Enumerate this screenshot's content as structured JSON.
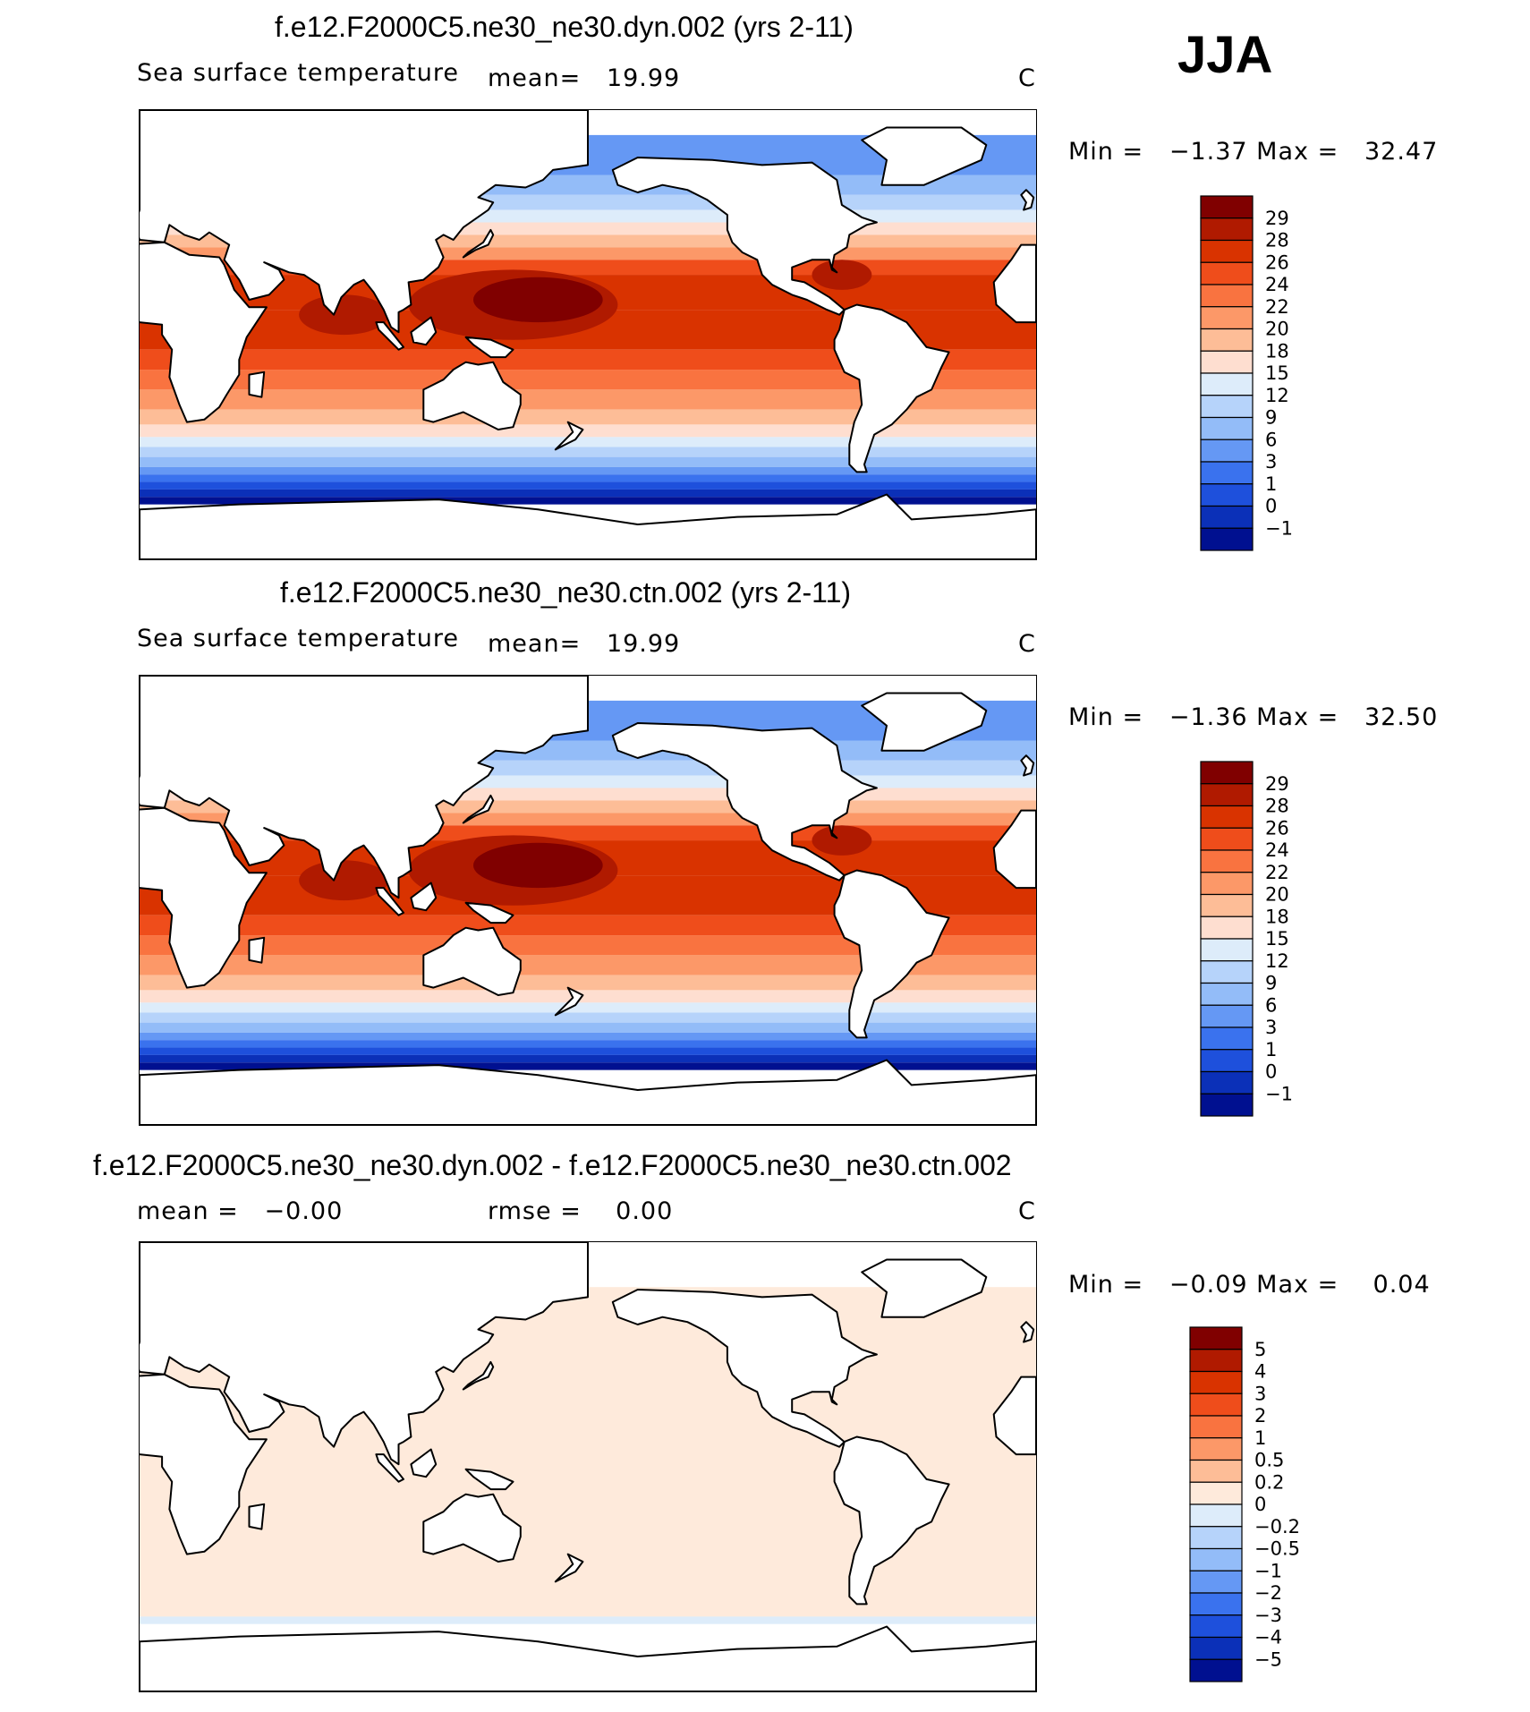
{
  "season": "JJA",
  "panels": [
    {
      "id": "dyn",
      "title": "f.e12.F2000C5.ne30_ne30.dyn.002 (yrs 2-11)",
      "variable": "Sea surface temperature",
      "stat1": "mean=   19.99",
      "units": "C",
      "minmax": "Min =   −1.37 Max =   32.47",
      "colorbar": {
        "labels": [
          "29",
          "28",
          "26",
          "24",
          "22",
          "20",
          "18",
          "15",
          "12",
          "9",
          "6",
          "3",
          "1",
          "0",
          "−1"
        ],
        "colors": [
          "#800000",
          "#b01a00",
          "#d93300",
          "#ef4d1b",
          "#f97340",
          "#fc9868",
          "#fdbd97",
          "#feded0",
          "#ddecfa",
          "#b6d3fa",
          "#93bcf8",
          "#6598f4",
          "#3a72ee",
          "#1e50dc",
          "#0b30b8",
          "#001090"
        ]
      }
    },
    {
      "id": "ctn",
      "title": "f.e12.F2000C5.ne30_ne30.ctn.002 (yrs 2-11)",
      "variable": "Sea surface temperature",
      "stat1": "mean=   19.99",
      "units": "C",
      "minmax": "Min =   −1.36 Max =   32.50",
      "colorbar": {
        "labels": [
          "29",
          "28",
          "26",
          "24",
          "22",
          "20",
          "18",
          "15",
          "12",
          "9",
          "6",
          "3",
          "1",
          "0",
          "−1"
        ],
        "colors": [
          "#800000",
          "#b01a00",
          "#d93300",
          "#ef4d1b",
          "#f97340",
          "#fc9868",
          "#fdbd97",
          "#feded0",
          "#ddecfa",
          "#b6d3fa",
          "#93bcf8",
          "#6598f4",
          "#3a72ee",
          "#1e50dc",
          "#0b30b8",
          "#001090"
        ]
      }
    },
    {
      "id": "diff",
      "title": "f.e12.F2000C5.ne30_ne30.dyn.002 - f.e12.F2000C5.ne30_ne30.ctn.002",
      "stat1": "mean =   −0.00",
      "stat2": "rmse =    0.00",
      "units": "C",
      "minmax": "Min =   −0.09 Max =    0.04",
      "colorbar": {
        "labels": [
          "5",
          "4",
          "3",
          "2",
          "1",
          "0.5",
          "0.2",
          "0",
          "−0.2",
          "−0.5",
          "−1",
          "−2",
          "−3",
          "−4",
          "−5"
        ],
        "colors": [
          "#800000",
          "#b01a00",
          "#d93300",
          "#ef4d1b",
          "#f97340",
          "#fc9868",
          "#fdbd97",
          "#feeadb",
          "#ddecfa",
          "#b6d3fa",
          "#93bcf8",
          "#6598f4",
          "#3a72ee",
          "#1e50dc",
          "#0b30b8",
          "#001090"
        ]
      }
    }
  ]
}
